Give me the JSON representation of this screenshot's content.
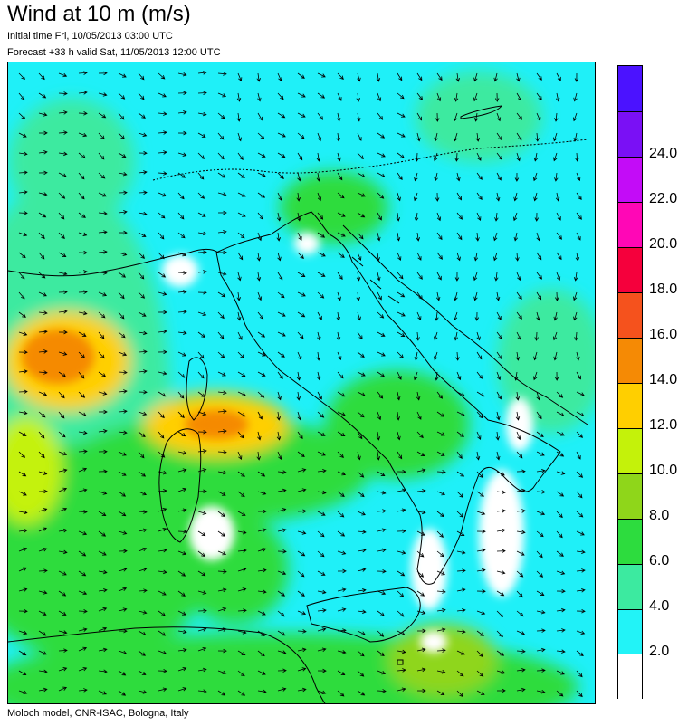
{
  "header": {
    "title": "Wind at 10 m (m/s)",
    "initial_time": "Initial time  Fri, 10/05/2013 03:00 UTC",
    "forecast": "Forecast +33 h valid  Sat, 11/05/2013 12:00 UTC"
  },
  "footer": {
    "credit": "Moloch model, CNR-ISAC, Bologna, Italy"
  },
  "legend": {
    "colors": [
      "#ffffff",
      "#22f3f7",
      "#3ceaa0",
      "#2ddc3e",
      "#8fd61a",
      "#c4f20a",
      "#ffcf00",
      "#f58a05",
      "#f5521d",
      "#f5003c",
      "#ff07b6",
      "#c30cf7",
      "#7a10f5",
      "#4b12ff"
    ],
    "labels": [
      "2.0",
      "4.0",
      "6.0",
      "8.0",
      "10.0",
      "12.0",
      "14.0",
      "16.0",
      "18.0",
      "20.0",
      "22.0",
      "24.0"
    ]
  },
  "map": {
    "background_color": "#22f3f7",
    "wind_fields_described": "Stronger winds (14-18 m/s) over western Mediterranean and Tyrrhenian Sea"
  }
}
